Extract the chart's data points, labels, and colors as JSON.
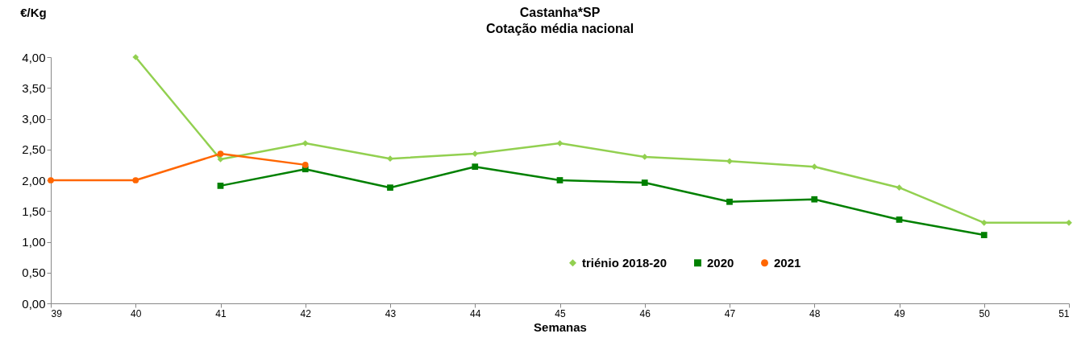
{
  "chart_data": {
    "type": "line",
    "title": "Castanha*SP",
    "subtitle": "Cotação média nacional",
    "xlabel": "Semanas",
    "ylabel": "€/Kg",
    "x": [
      39,
      40,
      41,
      42,
      43,
      44,
      45,
      46,
      47,
      48,
      49,
      50,
      51
    ],
    "series": [
      {
        "name": "triénio 2018-20",
        "color": "#92d050",
        "marker": "diamond",
        "values": [
          null,
          4.0,
          2.34,
          2.6,
          2.35,
          2.43,
          2.6,
          2.38,
          2.31,
          2.22,
          1.88,
          1.31,
          1.31
        ]
      },
      {
        "name": "2020",
        "color": "#008000",
        "marker": "square",
        "values": [
          null,
          null,
          1.91,
          2.18,
          1.88,
          2.22,
          2.0,
          1.96,
          1.65,
          1.69,
          1.36,
          1.11,
          null
        ]
      },
      {
        "name": "2021",
        "color": "#ff6600",
        "marker": "circle",
        "values": [
          2.0,
          2.0,
          2.43,
          2.25,
          null,
          null,
          null,
          null,
          null,
          null,
          null,
          null,
          null
        ]
      }
    ],
    "xlim": [
      39,
      51
    ],
    "xticks": [
      39,
      40,
      41,
      42,
      43,
      44,
      45,
      46,
      47,
      48,
      49,
      50,
      51
    ],
    "ylim": [
      0,
      4
    ],
    "yticks": [
      {
        "value": 0,
        "label": "0,00"
      },
      {
        "value": 0.5,
        "label": "0,50"
      },
      {
        "value": 1,
        "label": "1,00"
      },
      {
        "value": 1.5,
        "label": "1,50"
      },
      {
        "value": 2,
        "label": "2,00"
      },
      {
        "value": 2.5,
        "label": "2,50"
      },
      {
        "value": 3,
        "label": "3,00"
      },
      {
        "value": 3.5,
        "label": "3,50"
      },
      {
        "value": 4,
        "label": "4,00"
      }
    ],
    "grid": false,
    "legend": "bottom right",
    "line_style": "solid"
  }
}
